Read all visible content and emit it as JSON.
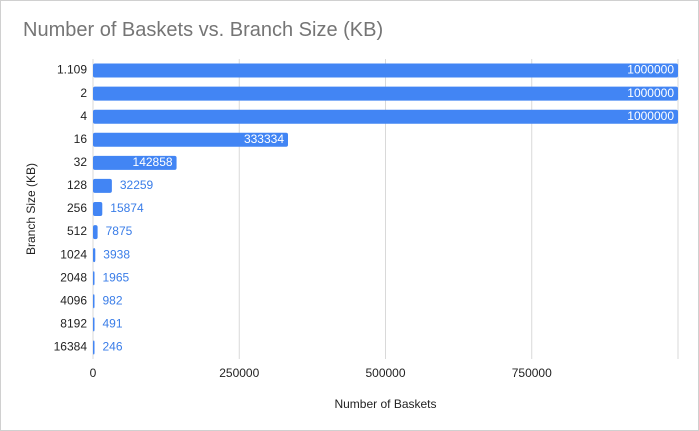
{
  "chart_data": {
    "type": "bar",
    "orientation": "horizontal",
    "title": "Number of Baskets vs. Branch Size (KB)",
    "xlabel": "Number of Baskets",
    "ylabel": "Branch Size (KB)",
    "categories": [
      "1.109",
      "2",
      "4",
      "16",
      "32",
      "128",
      "256",
      "512",
      "1024",
      "2048",
      "4096",
      "8192",
      "16384"
    ],
    "values": [
      1000000,
      1000000,
      1000000,
      333334,
      142858,
      32259,
      15874,
      7875,
      3938,
      1965,
      982,
      491,
      246
    ],
    "xlim": [
      0,
      1000000
    ],
    "x_ticks": [
      0,
      250000,
      500000,
      750000
    ],
    "x_tick_labels": [
      "0",
      "250000",
      "500000",
      "750000"
    ],
    "grid": true,
    "legend": "none",
    "bar_color": "#4285f4",
    "inside_label_color": "#ffffff",
    "outside_label_color": "#3a7de8"
  }
}
